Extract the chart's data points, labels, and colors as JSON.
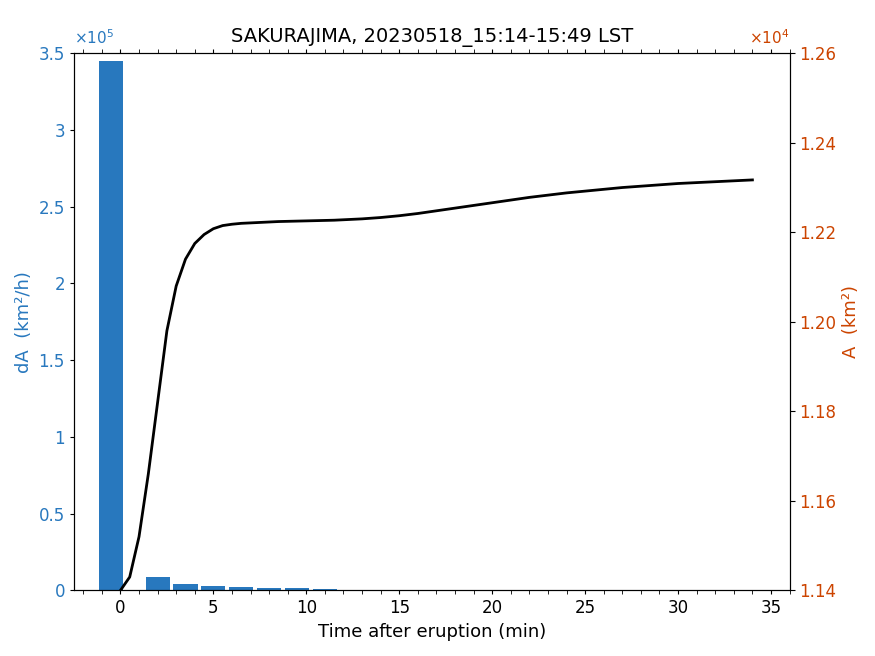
{
  "title": "SAKURAJIMA, 20230518_15:14-15:49 LST",
  "xlabel": "Time after eruption (min)",
  "ylabel_left": "dA  (km²/h)",
  "ylabel_right": "A  (km²)",
  "bar_color": "#2878be",
  "line_color": "#000000",
  "left_ylabel_color": "#2878be",
  "right_ylabel_color": "#cc4400",
  "xlim": [
    -2.5,
    36.0
  ],
  "ylim_left": [
    0,
    350000.0
  ],
  "ylim_right": [
    11400.0,
    12600.0
  ],
  "bar_centers": [
    -0.5,
    2.0,
    3.5,
    5.0,
    6.5,
    8.0,
    9.5,
    11.0,
    13.0,
    16.0,
    20.0,
    25.0,
    30.0
  ],
  "bar_heights": [
    345000,
    9000,
    4500,
    3000,
    2200,
    1700,
    1300,
    900,
    500,
    300,
    150,
    80,
    40
  ],
  "bar_width": 1.3,
  "line_x": [
    0.0,
    0.5,
    1.0,
    1.5,
    2.0,
    2.5,
    3.0,
    3.5,
    4.0,
    4.5,
    5.0,
    5.5,
    6.0,
    6.5,
    7.0,
    7.5,
    8.0,
    8.5,
    9.0,
    9.5,
    10.0,
    10.5,
    11.0,
    11.5,
    12.0,
    13.0,
    14.0,
    15.0,
    16.0,
    17.0,
    18.0,
    19.0,
    20.0,
    21.0,
    22.0,
    23.0,
    24.0,
    25.0,
    26.0,
    27.0,
    28.0,
    29.0,
    30.0,
    31.0,
    32.0,
    33.0,
    34.0
  ],
  "line_y": [
    11400,
    11430,
    11520,
    11660,
    11820,
    11980,
    12080,
    12140,
    12175,
    12195,
    12208,
    12215,
    12218,
    12220,
    12221,
    12222,
    12223,
    12224,
    12224.5,
    12225,
    12225.5,
    12226,
    12226.5,
    12227,
    12228,
    12230,
    12233,
    12237,
    12242,
    12248,
    12254,
    12260,
    12266,
    12272,
    12278,
    12283,
    12288,
    12292,
    12296,
    12300,
    12303,
    12306,
    12309,
    12311,
    12313,
    12315,
    12317
  ],
  "xticks": [
    0,
    5,
    10,
    15,
    20,
    25,
    30,
    35
  ],
  "yticks_left": [
    0,
    50000.0,
    100000.0,
    150000.0,
    200000.0,
    250000.0,
    300000.0,
    350000.0
  ],
  "yticks_right": [
    11400.0,
    11600.0,
    11800.0,
    12000.0,
    12200.0,
    12400.0,
    12600.0
  ],
  "title_fontsize": 14,
  "label_fontsize": 13,
  "tick_fontsize": 12,
  "exponent_fontsize": 11
}
